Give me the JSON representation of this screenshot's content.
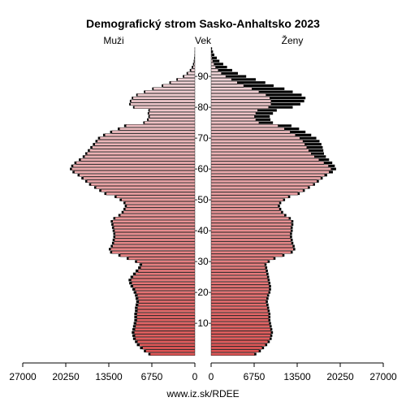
{
  "chart_data": {
    "type": "bar",
    "title": "Demografický strom Sasko-Anhaltsko 2023",
    "left_label": "Muži",
    "center_label": "Vek",
    "right_label": "Ženy",
    "footer": "www.iz.sk/RDEE",
    "x_ticks": [
      "27000",
      "20250",
      "13500",
      "6750",
      "0",
      "0",
      "6750",
      "13500",
      "20250",
      "27000"
    ],
    "age_ticks": [
      "10",
      "20",
      "30",
      "40",
      "50",
      "60",
      "70",
      "80",
      "90"
    ],
    "xlim": [
      0,
      27000
    ],
    "ages": [
      0,
      1,
      2,
      3,
      4,
      5,
      6,
      7,
      8,
      9,
      10,
      11,
      12,
      13,
      14,
      15,
      16,
      17,
      18,
      19,
      20,
      21,
      22,
      23,
      24,
      25,
      26,
      27,
      28,
      29,
      30,
      31,
      32,
      33,
      34,
      35,
      36,
      37,
      38,
      39,
      40,
      41,
      42,
      43,
      44,
      45,
      46,
      47,
      48,
      49,
      50,
      51,
      52,
      53,
      54,
      55,
      56,
      57,
      58,
      59,
      60,
      61,
      62,
      63,
      64,
      65,
      66,
      67,
      68,
      69,
      70,
      71,
      72,
      73,
      74,
      75,
      76,
      77,
      78,
      79,
      80,
      81,
      82,
      83,
      84,
      85,
      86,
      87,
      88,
      89,
      90,
      91,
      92,
      93,
      94,
      95,
      96,
      97,
      98,
      99
    ],
    "male_total": [
      7300,
      8000,
      8600,
      9100,
      9400,
      9700,
      9800,
      9900,
      9800,
      9700,
      9600,
      9500,
      9500,
      9500,
      9400,
      9400,
      9300,
      9200,
      9300,
      9400,
      9600,
      9800,
      10100,
      10300,
      10400,
      10100,
      9700,
      9300,
      8900,
      8700,
      9400,
      10700,
      12000,
      13300,
      13500,
      13200,
      13000,
      12900,
      12800,
      12800,
      12900,
      13000,
      13100,
      13200,
      12800,
      12000,
      11500,
      11200,
      11000,
      11200,
      11800,
      12600,
      14200,
      15000,
      15800,
      16600,
      17200,
      17800,
      18400,
      19200,
      19600,
      19400,
      18900,
      18200,
      17600,
      17200,
      16800,
      16400,
      16000,
      15600,
      15200,
      14400,
      13300,
      12100,
      11100,
      8100,
      7500,
      7300,
      7400,
      7300,
      9700,
      10300,
      10200,
      9900,
      9200,
      8000,
      6700,
      5200,
      4000,
      2900,
      1900,
      1300,
      800,
      500,
      300,
      180,
      100,
      60,
      30,
      15
    ],
    "male_drawn": [
      7000,
      7700,
      8200,
      8700,
      9000,
      9300,
      9400,
      9500,
      9400,
      9300,
      9200,
      9100,
      9100,
      9100,
      9000,
      9000,
      8900,
      8800,
      8900,
      9000,
      9200,
      9400,
      9700,
      9900,
      10000,
      9700,
      9300,
      8900,
      8500,
      8300,
      9100,
      10400,
      11700,
      13000,
      13200,
      12900,
      12700,
      12600,
      12500,
      12500,
      12600,
      12700,
      12800,
      12900,
      12500,
      11700,
      11200,
      10900,
      10700,
      10900,
      11500,
      12300,
      13900,
      14700,
      15500,
      16300,
      16900,
      17500,
      18100,
      18900,
      19300,
      19100,
      18600,
      17900,
      17300,
      16900,
      16500,
      16100,
      15700,
      15300,
      14900,
      14100,
      13000,
      11800,
      10800,
      7900,
      7300,
      7100,
      7200,
      7100,
      9500,
      10100,
      10000,
      9700,
      9000,
      7800,
      6500,
      5000,
      3800,
      2700,
      1700,
      1100,
      600,
      300,
      150,
      80,
      40,
      20,
      10,
      5
    ],
    "female_total": [
      7100,
      7800,
      8300,
      8800,
      9200,
      9500,
      9600,
      9700,
      9600,
      9500,
      9400,
      9300,
      9300,
      9300,
      9200,
      9100,
      9000,
      8900,
      9000,
      9100,
      9300,
      9400,
      9400,
      9300,
      9200,
      9100,
      9000,
      8900,
      8800,
      8700,
      9200,
      10100,
      11500,
      12800,
      13200,
      13100,
      12900,
      12800,
      12700,
      12700,
      12800,
      12800,
      12900,
      12900,
      12500,
      11800,
      11300,
      11000,
      10800,
      11000,
      11600,
      12400,
      13900,
      14700,
      15500,
      16300,
      16900,
      17500,
      18200,
      19100,
      19600,
      19400,
      19000,
      18500,
      18000,
      17700,
      17600,
      17500,
      17300,
      17000,
      16500,
      15700,
      14800,
      13800,
      12600,
      9700,
      9300,
      9200,
      9700,
      10300,
      12800,
      14000,
      14600,
      14800,
      14200,
      12800,
      11500,
      9800,
      8500,
      7000,
      5500,
      4200,
      3300,
      2500,
      1900,
      1300,
      900,
      500,
      300,
      150
    ],
    "female_drawn": [
      6800,
      7500,
      8000,
      8500,
      8900,
      9200,
      9300,
      9400,
      9300,
      9200,
      9100,
      9000,
      9000,
      9000,
      8900,
      8800,
      8700,
      8600,
      8700,
      8800,
      9000,
      9100,
      9100,
      9000,
      8900,
      8800,
      8700,
      8600,
      8500,
      8400,
      8900,
      9800,
      11200,
      12500,
      12900,
      12800,
      12600,
      12500,
      12400,
      12400,
      12500,
      12500,
      12600,
      12600,
      12200,
      11500,
      11000,
      10700,
      10500,
      10700,
      11300,
      12100,
      13600,
      14400,
      15200,
      16000,
      16600,
      17200,
      17800,
      18500,
      18800,
      18400,
      17700,
      16900,
      16200,
      15700,
      15300,
      15000,
      14700,
      14400,
      13900,
      13200,
      12400,
      11500,
      10500,
      7500,
      7000,
      6800,
      7000,
      7300,
      9000,
      9400,
      9400,
      9200,
      8600,
      7500,
      6400,
      5100,
      4100,
      3200,
      2300,
      1600,
      1100,
      700,
      450,
      250,
      130,
      70,
      40,
      20
    ],
    "colors": {
      "bar_young": "#e05555",
      "bar_old": "#f0d4d8",
      "excess": "#000000",
      "outline": "#000000"
    }
  }
}
